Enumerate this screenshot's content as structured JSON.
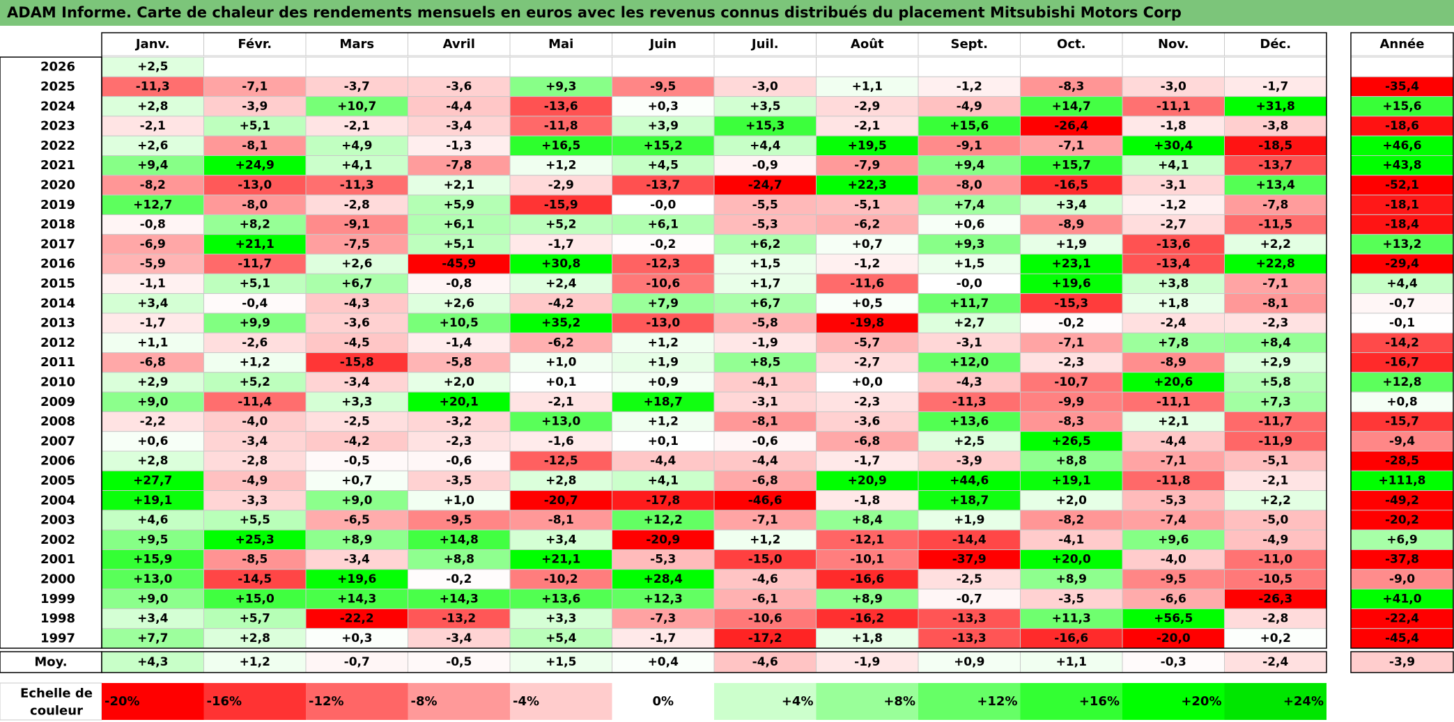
{
  "chart_data": {
    "type": "heatmap",
    "title": "ADAM Informe. Carte de chaleur des rendements mensuels en euros avec les revenus connus distribués du placement Mitsubishi Motors Corp",
    "columns": [
      "Janv.",
      "Févr.",
      "Mars",
      "Avril",
      "Mai",
      "Juin",
      "Juil.",
      "Août",
      "Sept.",
      "Oct.",
      "Nov.",
      "Déc."
    ],
    "year_column_label": "Année",
    "rows": [
      {
        "year": "2026",
        "values": [
          "+2,5",
          "",
          "",
          "",
          "",
          "",
          "",
          "",
          "",
          "",
          "",
          ""
        ],
        "annual": ""
      },
      {
        "year": "2025",
        "values": [
          "-11,3",
          "-7,1",
          "-3,7",
          "-3,6",
          "+9,3",
          "-9,5",
          "-3,0",
          "+1,1",
          "-1,2",
          "-8,3",
          "-3,0",
          "-1,7"
        ],
        "annual": "-35,4"
      },
      {
        "year": "2024",
        "values": [
          "+2,8",
          "-3,9",
          "+10,7",
          "-4,4",
          "-13,6",
          "+0,3",
          "+3,5",
          "-2,9",
          "-4,9",
          "+14,7",
          "-11,1",
          "+31,8"
        ],
        "annual": "+15,6"
      },
      {
        "year": "2023",
        "values": [
          "-2,1",
          "+5,1",
          "-2,1",
          "-3,4",
          "-11,8",
          "+3,9",
          "+15,3",
          "-2,1",
          "+15,6",
          "-26,4",
          "-1,8",
          "-3,8"
        ],
        "annual": "-18,6"
      },
      {
        "year": "2022",
        "values": [
          "+2,6",
          "-8,1",
          "+4,9",
          "-1,3",
          "+16,5",
          "+15,2",
          "+4,4",
          "+19,5",
          "-9,1",
          "-7,1",
          "+30,4",
          "-18,5"
        ],
        "annual": "+46,6"
      },
      {
        "year": "2021",
        "values": [
          "+9,4",
          "+24,9",
          "+4,1",
          "-7,8",
          "+1,2",
          "+4,5",
          "-0,9",
          "-7,9",
          "+9,4",
          "+15,7",
          "+4,1",
          "-13,7"
        ],
        "annual": "+43,8"
      },
      {
        "year": "2020",
        "values": [
          "-8,2",
          "-13,0",
          "-11,3",
          "+2,1",
          "-2,9",
          "-13,7",
          "-24,7",
          "+22,3",
          "-8,0",
          "-16,5",
          "-3,1",
          "+13,4"
        ],
        "annual": "-52,1"
      },
      {
        "year": "2019",
        "values": [
          "+12,7",
          "-8,0",
          "-2,8",
          "+5,9",
          "-15,9",
          "-0,0",
          "-5,5",
          "-5,1",
          "+7,4",
          "+3,4",
          "-1,2",
          "-7,8"
        ],
        "annual": "-18,1"
      },
      {
        "year": "2018",
        "values": [
          "-0,8",
          "+8,2",
          "-9,1",
          "+6,1",
          "+5,2",
          "+6,1",
          "-5,3",
          "-6,2",
          "+0,6",
          "-8,9",
          "-2,7",
          "-11,5"
        ],
        "annual": "-18,4"
      },
      {
        "year": "2017",
        "values": [
          "-6,9",
          "+21,1",
          "-7,5",
          "+5,1",
          "-1,7",
          "-0,2",
          "+6,2",
          "+0,7",
          "+9,3",
          "+1,9",
          "-13,6",
          "+2,2"
        ],
        "annual": "+13,2"
      },
      {
        "year": "2016",
        "values": [
          "-5,9",
          "-11,7",
          "+2,6",
          "-45,9",
          "+30,8",
          "-12,3",
          "+1,5",
          "-1,2",
          "+1,5",
          "+23,1",
          "-13,4",
          "+22,8"
        ],
        "annual": "-29,4"
      },
      {
        "year": "2015",
        "values": [
          "-1,1",
          "+5,1",
          "+6,7",
          "-0,8",
          "+2,4",
          "-10,6",
          "+1,7",
          "-11,6",
          "-0,0",
          "+19,6",
          "+3,8",
          "-7,1"
        ],
        "annual": "+4,4"
      },
      {
        "year": "2014",
        "values": [
          "+3,4",
          "-0,4",
          "-4,3",
          "+2,6",
          "-4,2",
          "+7,9",
          "+6,7",
          "+0,5",
          "+11,7",
          "-15,3",
          "+1,8",
          "-8,1"
        ],
        "annual": "-0,7"
      },
      {
        "year": "2013",
        "values": [
          "-1,7",
          "+9,9",
          "-3,6",
          "+10,5",
          "+35,2",
          "-13,0",
          "-5,8",
          "-19,8",
          "+2,7",
          "-0,2",
          "-2,4",
          "-2,3"
        ],
        "annual": "-0,1"
      },
      {
        "year": "2012",
        "values": [
          "+1,1",
          "-2,6",
          "-4,5",
          "-1,4",
          "-6,2",
          "+1,2",
          "-1,9",
          "-5,7",
          "-3,1",
          "-7,1",
          "+7,8",
          "+8,4"
        ],
        "annual": "-14,2"
      },
      {
        "year": "2011",
        "values": [
          "-6,8",
          "+1,2",
          "-15,8",
          "-5,8",
          "+1,0",
          "+1,9",
          "+8,5",
          "-2,7",
          "+12,0",
          "-2,3",
          "-8,9",
          "+2,9"
        ],
        "annual": "-16,7"
      },
      {
        "year": "2010",
        "values": [
          "+2,9",
          "+5,2",
          "-3,4",
          "+2,0",
          "+0,1",
          "+0,9",
          "-4,1",
          "+0,0",
          "-4,3",
          "-10,7",
          "+20,6",
          "+5,8"
        ],
        "annual": "+12,8"
      },
      {
        "year": "2009",
        "values": [
          "+9,0",
          "-11,4",
          "+3,3",
          "+20,1",
          "-2,1",
          "+18,7",
          "-3,1",
          "-2,3",
          "-11,3",
          "-9,9",
          "-11,1",
          "+7,3"
        ],
        "annual": "+0,8"
      },
      {
        "year": "2008",
        "values": [
          "-2,2",
          "-4,0",
          "-2,5",
          "-3,2",
          "+13,0",
          "+1,2",
          "-8,1",
          "-3,6",
          "+13,6",
          "-8,3",
          "+2,1",
          "-11,7"
        ],
        "annual": "-15,7"
      },
      {
        "year": "2007",
        "values": [
          "+0,6",
          "-3,4",
          "-4,2",
          "-2,3",
          "-1,6",
          "+0,1",
          "-0,6",
          "-6,8",
          "+2,5",
          "+26,5",
          "-4,4",
          "-11,9"
        ],
        "annual": "-9,4"
      },
      {
        "year": "2006",
        "values": [
          "+2,8",
          "-2,8",
          "-0,5",
          "-0,6",
          "-12,5",
          "-4,4",
          "-4,4",
          "-1,7",
          "-3,9",
          "+8,8",
          "-7,1",
          "-5,1"
        ],
        "annual": "-28,5"
      },
      {
        "year": "2005",
        "values": [
          "+27,7",
          "-4,9",
          "+0,7",
          "-3,5",
          "+2,8",
          "+4,1",
          "-6,8",
          "+20,9",
          "+44,6",
          "+19,1",
          "-11,8",
          "-2,1"
        ],
        "annual": "+111,8"
      },
      {
        "year": "2004",
        "values": [
          "+19,1",
          "-3,3",
          "+9,0",
          "+1,0",
          "-20,7",
          "-17,8",
          "-46,6",
          "-1,8",
          "+18,7",
          "+2,0",
          "-5,3",
          "+2,2"
        ],
        "annual": "-49,2"
      },
      {
        "year": "2003",
        "values": [
          "+4,6",
          "+5,5",
          "-6,5",
          "-9,5",
          "-8,1",
          "+12,2",
          "-7,1",
          "+8,4",
          "+1,9",
          "-8,2",
          "-7,4",
          "-5,0"
        ],
        "annual": "-20,2"
      },
      {
        "year": "2002",
        "values": [
          "+9,5",
          "+25,3",
          "+8,9",
          "+14,8",
          "+3,4",
          "-20,9",
          "+1,2",
          "-12,1",
          "-14,4",
          "-4,1",
          "+9,6",
          "-4,9"
        ],
        "annual": "+6,9"
      },
      {
        "year": "2001",
        "values": [
          "+15,9",
          "-8,5",
          "-3,4",
          "+8,8",
          "+21,1",
          "-5,3",
          "-15,0",
          "-10,1",
          "-37,9",
          "+20,0",
          "-4,0",
          "-11,0"
        ],
        "annual": "-37,8"
      },
      {
        "year": "2000",
        "values": [
          "+13,0",
          "-14,5",
          "+19,6",
          "-0,2",
          "-10,2",
          "+28,4",
          "-4,6",
          "-16,6",
          "-2,5",
          "+8,9",
          "-9,5",
          "-10,5"
        ],
        "annual": "-9,0"
      },
      {
        "year": "1999",
        "values": [
          "+9,0",
          "+15,0",
          "+14,3",
          "+14,3",
          "+13,6",
          "+12,3",
          "-6,1",
          "+8,9",
          "-0,7",
          "-3,5",
          "-6,6",
          "-26,3"
        ],
        "annual": "+41,0"
      },
      {
        "year": "1998",
        "values": [
          "+3,4",
          "+5,7",
          "-22,2",
          "-13,2",
          "+3,3",
          "-7,3",
          "-10,6",
          "-16,2",
          "-13,3",
          "+11,3",
          "+56,5",
          "-2,8"
        ],
        "annual": "-22,4"
      },
      {
        "year": "1997",
        "values": [
          "+7,7",
          "+2,8",
          "+0,3",
          "-3,4",
          "+5,4",
          "-1,7",
          "-17,2",
          "+1,8",
          "-13,3",
          "-16,6",
          "-20,0",
          "+0,2"
        ],
        "annual": "-45,4"
      }
    ],
    "average": {
      "label": "Moy.",
      "values": [
        "+4,3",
        "+1,2",
        "-0,7",
        "-0,5",
        "+1,5",
        "+0,4",
        "-4,6",
        "-1,9",
        "+0,9",
        "+1,1",
        "-0,3",
        "-2,4"
      ],
      "annual": "-3,9"
    },
    "color_scale": {
      "label_line1": "Echelle de",
      "label_line2": "couleur",
      "steps": [
        {
          "label": "-20%",
          "color": "#ff0000"
        },
        {
          "label": "-16%",
          "color": "#ff3333"
        },
        {
          "label": "-12%",
          "color": "#ff6666"
        },
        {
          "label": "-8%",
          "color": "#ff9999"
        },
        {
          "label": "-4%",
          "color": "#ffcccc"
        },
        {
          "label": "0%",
          "color": "#ffffff"
        },
        {
          "label": "+4%",
          "color": "#ccffcc"
        },
        {
          "label": "+8%",
          "color": "#99ff99"
        },
        {
          "label": "+12%",
          "color": "#66ff66"
        },
        {
          "label": "+16%",
          "color": "#33ff33"
        },
        {
          "label": "+20%",
          "color": "#00ff00"
        },
        {
          "label": "+24%",
          "color": "#00e600"
        }
      ]
    },
    "colors": {
      "title_bar": "#7cc57a",
      "grid": "#c8c8c8",
      "positive_max": "#00ff00",
      "negative_max": "#ff0000"
    }
  }
}
